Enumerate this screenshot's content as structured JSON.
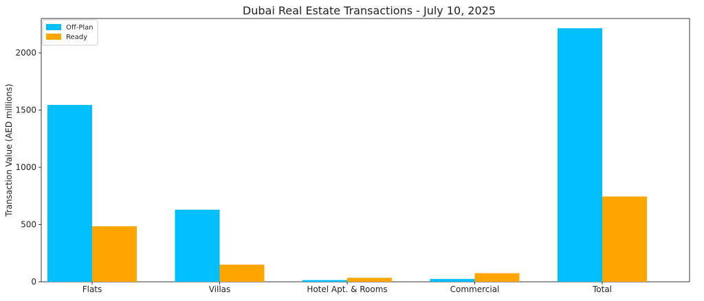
{
  "chart_data": {
    "type": "bar",
    "title": "Dubai Real Estate Transactions - July 10, 2025",
    "xlabel": "",
    "ylabel": "Transaction Value (AED millions)",
    "categories": [
      "Flats",
      "Villas",
      "Hotel Apt. & Rooms",
      "Commercial",
      "Total"
    ],
    "series": [
      {
        "name": "Off-Plan",
        "color": "#00BFFF",
        "values": [
          1545,
          630,
          15,
          25,
          2215
        ]
      },
      {
        "name": "Ready",
        "color": "#FFA500",
        "values": [
          485,
          150,
          35,
          75,
          745
        ]
      }
    ],
    "ylim": [
      0,
      2300
    ],
    "yticks": [
      0,
      500,
      1000,
      1500,
      2000
    ],
    "grid": false,
    "legend_position": "top-left"
  }
}
